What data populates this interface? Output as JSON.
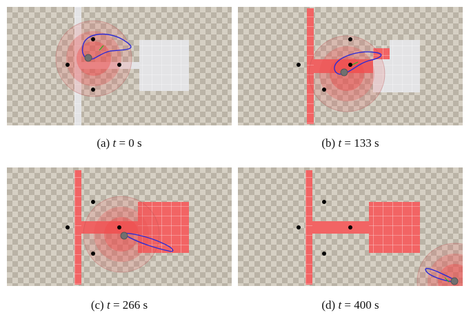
{
  "figure": {
    "panels": [
      {
        "id": "a",
        "label": "(a)",
        "var": "t",
        "rel": "=",
        "value": "0",
        "unit": "s"
      },
      {
        "id": "b",
        "label": "(b)",
        "var": "t",
        "rel": "=",
        "value": "133",
        "unit": "s"
      },
      {
        "id": "c",
        "label": "(c)",
        "var": "t",
        "rel": "=",
        "value": "266",
        "unit": "s"
      },
      {
        "id": "d",
        "label": "(d)",
        "var": "t",
        "rel": "=",
        "value": "400",
        "unit": "s"
      }
    ]
  },
  "colors": {
    "floor_light": "#d6d0c4",
    "floor_dark": "#b8b0a2",
    "unexplored": "#e4e4e6",
    "explored": "#f26464",
    "path": "#2b2bd6",
    "landmark": "#000000",
    "robot": "#707070",
    "grid_line": "#ffffff",
    "sensor_outer": "rgba(230,90,90,0.18)",
    "sensor_mid": "rgba(235,80,80,0.28)",
    "sensor_inner": "rgba(240,70,70,0.38)",
    "heading": "#22bb22"
  }
}
